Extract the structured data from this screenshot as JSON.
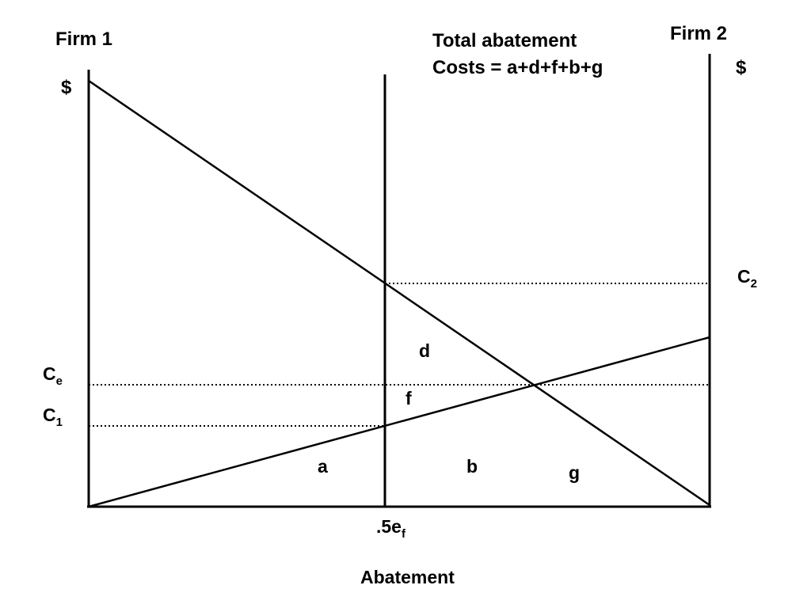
{
  "figure": {
    "firm1_label": "Firm 1",
    "firm2_label": "Firm 2",
    "left_axis_unit": "$",
    "right_axis_unit": "$",
    "total_cost_line1": "Total abatement",
    "total_cost_line2": "Costs = a+d+f+b+g",
    "x_axis_title": "Abatement",
    "x_tick": {
      "main": ".5e",
      "sub": "f"
    },
    "levels": {
      "c2": {
        "main": "C",
        "sub": "2"
      },
      "ce": {
        "main": "C",
        "sub": "e"
      },
      "c1": {
        "main": "C",
        "sub": "1"
      }
    },
    "regions": {
      "a": "a",
      "b": "b",
      "d": "d",
      "f": "f",
      "g": "g"
    }
  }
}
